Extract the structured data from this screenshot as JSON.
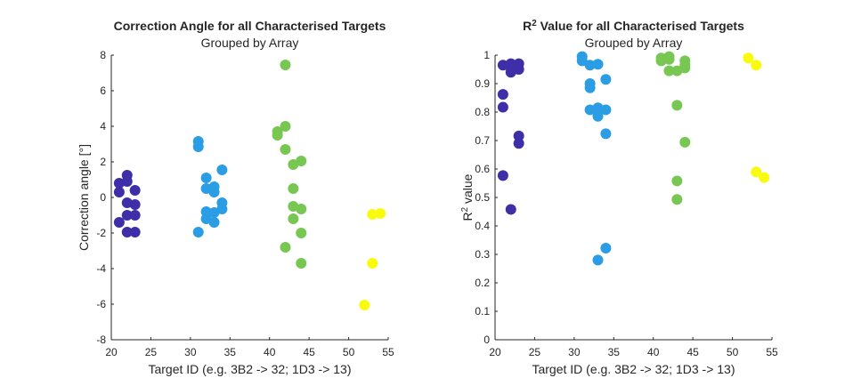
{
  "chart_data": [
    {
      "type": "scatter",
      "title": "Correction Angle for all Characterised Targets",
      "subtitle": "Grouped by Array",
      "xlabel": "Target ID (e.g. 3B2 -> 32; 1D3 -> 13)",
      "ylabel": "Correction angle [°]",
      "xlim": [
        20,
        55
      ],
      "ylim": [
        -8,
        8
      ],
      "xticks": [
        "20",
        "25",
        "30",
        "35",
        "40",
        "45",
        "50",
        "55"
      ],
      "yticks": [
        "-8",
        "-6",
        "-4",
        "-2",
        "0",
        "2",
        "4",
        "6",
        "8"
      ],
      "xtick_values": [
        20,
        25,
        30,
        35,
        40,
        45,
        50,
        55
      ],
      "ytick_values": [
        -8,
        -6,
        -4,
        -2,
        0,
        2,
        4,
        6,
        8
      ],
      "grid": false,
      "series": [
        {
          "color": "#3e2ea8",
          "points": [
            [
              21,
              0.8
            ],
            [
              21,
              0.3
            ],
            [
              21,
              -1.4
            ],
            [
              22,
              1.25
            ],
            [
              22,
              0.9
            ],
            [
              22,
              -0.3
            ],
            [
              22,
              -1.0
            ],
            [
              22,
              -1.95
            ],
            [
              23,
              0.4
            ],
            [
              23,
              -0.4
            ],
            [
              23,
              -1.0
            ],
            [
              23,
              -1.95
            ]
          ]
        },
        {
          "color": "#2b9de4",
          "points": [
            [
              31,
              3.15
            ],
            [
              31,
              2.85
            ],
            [
              31,
              -1.95
            ],
            [
              32,
              1.1
            ],
            [
              32,
              0.5
            ],
            [
              32,
              -0.8
            ],
            [
              32,
              -1.2
            ],
            [
              33,
              0.6
            ],
            [
              33,
              0.3
            ],
            [
              33,
              -0.85
            ],
            [
              33,
              -1.4
            ],
            [
              34,
              1.55
            ],
            [
              34,
              -0.3
            ],
            [
              34,
              -0.65
            ]
          ]
        },
        {
          "color": "#78c753",
          "points": [
            [
              41,
              3.7
            ],
            [
              41,
              3.5
            ],
            [
              42,
              7.45
            ],
            [
              42,
              4.0
            ],
            [
              42,
              2.7
            ],
            [
              42,
              -2.8
            ],
            [
              43,
              1.85
            ],
            [
              43,
              0.5
            ],
            [
              43,
              -0.5
            ],
            [
              43,
              -1.2
            ],
            [
              44,
              2.05
            ],
            [
              44,
              -0.65
            ],
            [
              44,
              -2.0
            ],
            [
              44,
              -3.7
            ]
          ]
        },
        {
          "color": "#f9fb0e",
          "points": [
            [
              52,
              -6.05
            ],
            [
              53,
              -0.95
            ],
            [
              53,
              -3.7
            ],
            [
              54,
              -0.9
            ]
          ]
        }
      ]
    },
    {
      "type": "scatter",
      "title": "R² Value for all Characterised Targets",
      "subtitle": "Grouped by Array",
      "xlabel": "Target ID (e.g. 3B2 -> 32; 1D3 -> 13)",
      "ylabel": "R² value",
      "xlim": [
        20,
        55
      ],
      "ylim": [
        0,
        1
      ],
      "xticks": [
        "20",
        "25",
        "30",
        "35",
        "40",
        "45",
        "50",
        "55"
      ],
      "yticks": [
        "0",
        "0.1",
        "0.2",
        "0.3",
        "0.4",
        "0.5",
        "0.6",
        "0.7",
        "0.8",
        "0.9",
        "1"
      ],
      "xtick_values": [
        20,
        25,
        30,
        35,
        40,
        45,
        50,
        55
      ],
      "ytick_values": [
        0,
        0.1,
        0.2,
        0.3,
        0.4,
        0.5,
        0.6,
        0.7,
        0.8,
        0.9,
        1
      ],
      "grid": false,
      "series": [
        {
          "color": "#3e2ea8",
          "points": [
            [
              21,
              0.965
            ],
            [
              21,
              0.862
            ],
            [
              21,
              0.817
            ],
            [
              21,
              0.577
            ],
            [
              22,
              0.97
            ],
            [
              22,
              0.955
            ],
            [
              22,
              0.94
            ],
            [
              22,
              0.458
            ],
            [
              23,
              0.97
            ],
            [
              23,
              0.95
            ],
            [
              23,
              0.716
            ],
            [
              23,
              0.69
            ]
          ]
        },
        {
          "color": "#2b9de4",
          "points": [
            [
              31,
              0.995
            ],
            [
              31,
              0.98
            ],
            [
              32,
              0.965
            ],
            [
              32,
              0.9
            ],
            [
              32,
              0.885
            ],
            [
              32,
              0.808
            ],
            [
              33,
              0.968
            ],
            [
              33,
              0.815
            ],
            [
              33,
              0.8
            ],
            [
              33,
              0.785
            ],
            [
              33,
              0.28
            ],
            [
              34,
              0.915
            ],
            [
              34,
              0.808
            ],
            [
              34,
              0.724
            ],
            [
              34,
              0.322
            ]
          ]
        },
        {
          "color": "#78c753",
          "points": [
            [
              41,
              0.99
            ],
            [
              41,
              0.98
            ],
            [
              42,
              0.995
            ],
            [
              42,
              0.985
            ],
            [
              42,
              0.945
            ],
            [
              43,
              0.945
            ],
            [
              43,
              0.824
            ],
            [
              43,
              0.558
            ],
            [
              43,
              0.493
            ],
            [
              44,
              0.98
            ],
            [
              44,
              0.965
            ],
            [
              44,
              0.955
            ],
            [
              44,
              0.694
            ]
          ]
        },
        {
          "color": "#f9fb0e",
          "points": [
            [
              52,
              0.99
            ],
            [
              53,
              0.965
            ],
            [
              53,
              0.59
            ],
            [
              54,
              0.57
            ]
          ]
        }
      ]
    }
  ]
}
